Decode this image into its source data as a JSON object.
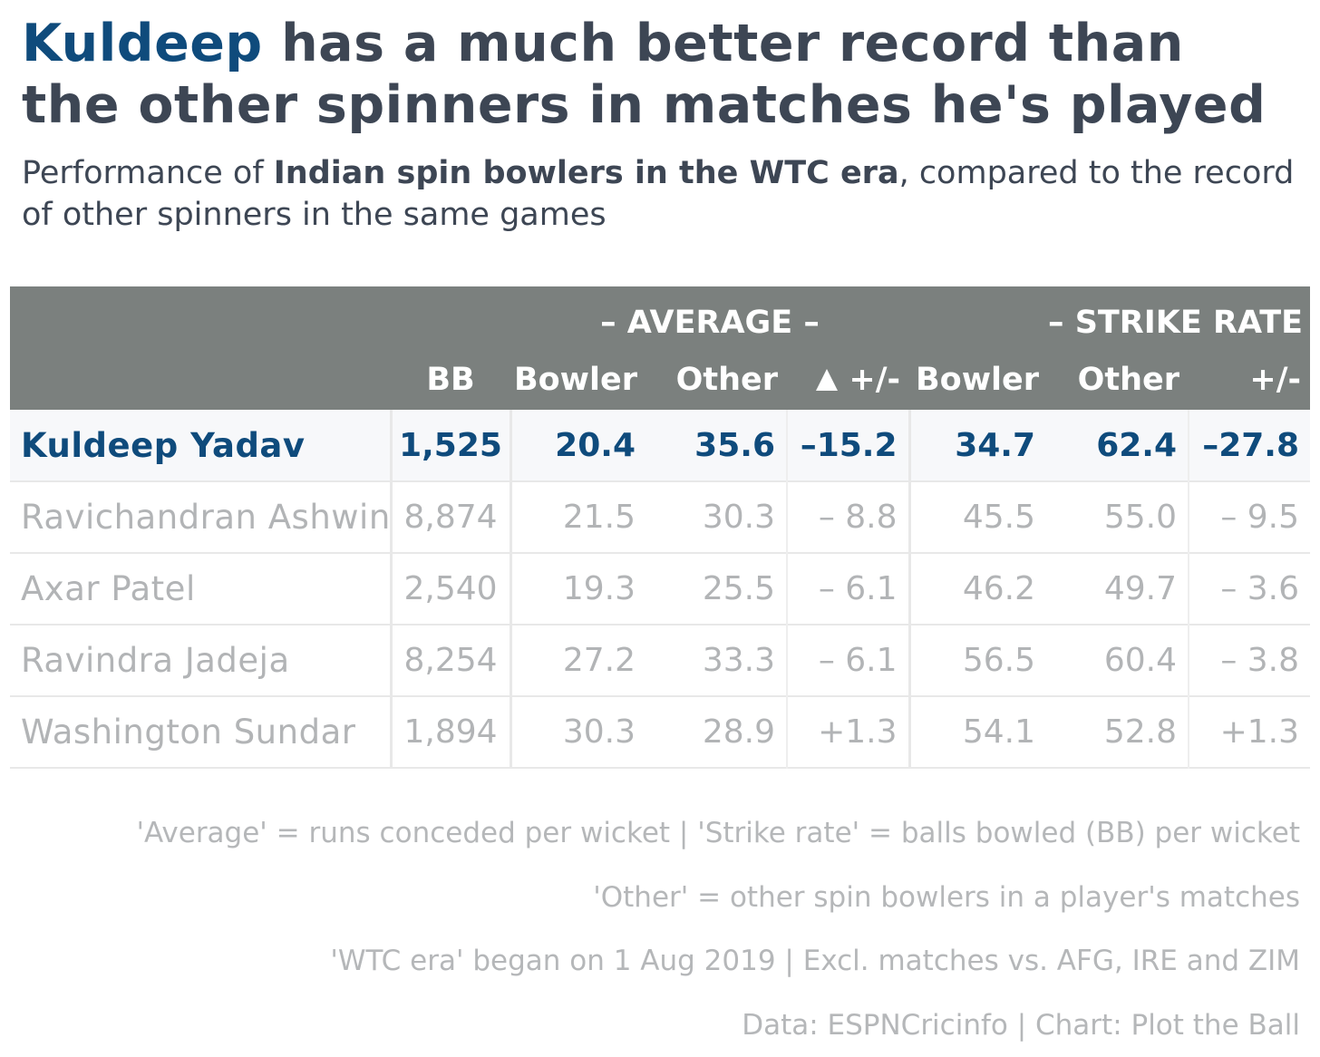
{
  "title": {
    "highlight": "Kuldeep",
    "rest": " has a much better record than the other spinners in matches he's played"
  },
  "subtitle": {
    "pre": "Performance of ",
    "bold": "Indian spin bowlers in the WTC era",
    "post": ", compared to the record of other spinners in the same games"
  },
  "chart_data": {
    "type": "table",
    "group_headers": {
      "average": "– AVERAGE –",
      "strike_rate": "– STRIKE RATE –"
    },
    "columns": {
      "bb": "BB",
      "avg_bowler": "Bowler",
      "avg_other": "Other",
      "avg_diff": "+/-",
      "sr_bowler": "Bowler",
      "sr_other": "Other",
      "sr_diff": "+/-"
    },
    "rows": [
      {
        "name": "Kuldeep Yadav",
        "bb": "1,525",
        "avg_bowler": "20.4",
        "avg_other": "35.6",
        "avg_diff": "–15.2",
        "sr_bowler": "34.7",
        "sr_other": "62.4",
        "sr_diff": "–27.8",
        "highlight": true
      },
      {
        "name": "Ravichandran Ashwin",
        "bb": "8,874",
        "avg_bowler": "21.5",
        "avg_other": "30.3",
        "avg_diff": "– 8.8",
        "sr_bowler": "45.5",
        "sr_other": "55.0",
        "sr_diff": "– 9.5"
      },
      {
        "name": "Axar Patel",
        "bb": "2,540",
        "avg_bowler": "19.3",
        "avg_other": "25.5",
        "avg_diff": "– 6.1",
        "sr_bowler": "46.2",
        "sr_other": "49.7",
        "sr_diff": "– 3.6"
      },
      {
        "name": "Ravindra Jadeja",
        "bb": "8,254",
        "avg_bowler": "27.2",
        "avg_other": "33.3",
        "avg_diff": "– 6.1",
        "sr_bowler": "56.5",
        "sr_other": "60.4",
        "sr_diff": "– 3.8"
      },
      {
        "name": "Washington Sundar",
        "bb": "1,894",
        "avg_bowler": "30.3",
        "avg_other": "28.9",
        "avg_diff": "+1.3",
        "sr_bowler": "54.1",
        "sr_other": "52.8",
        "sr_diff": "+1.3"
      }
    ]
  },
  "notes": [
    "'Average' = runs conceded per wicket | 'Strike rate' = balls bowled (BB) per wicket",
    "'Other' = other spin bowlers in a player's matches",
    "'WTC era' began on 1 Aug 2019 | Excl. matches vs. AFG, IRE and ZIM",
    "Data: ESPNCricinfo | Chart: Plot the Ball"
  ],
  "colors": {
    "highlight": "#0f4b7c",
    "header_bg": "#7b807e",
    "title": "#3d4654",
    "muted": "#b2b4b6"
  },
  "icons": {
    "avg_diff_marker": "triangle-up-icon"
  }
}
